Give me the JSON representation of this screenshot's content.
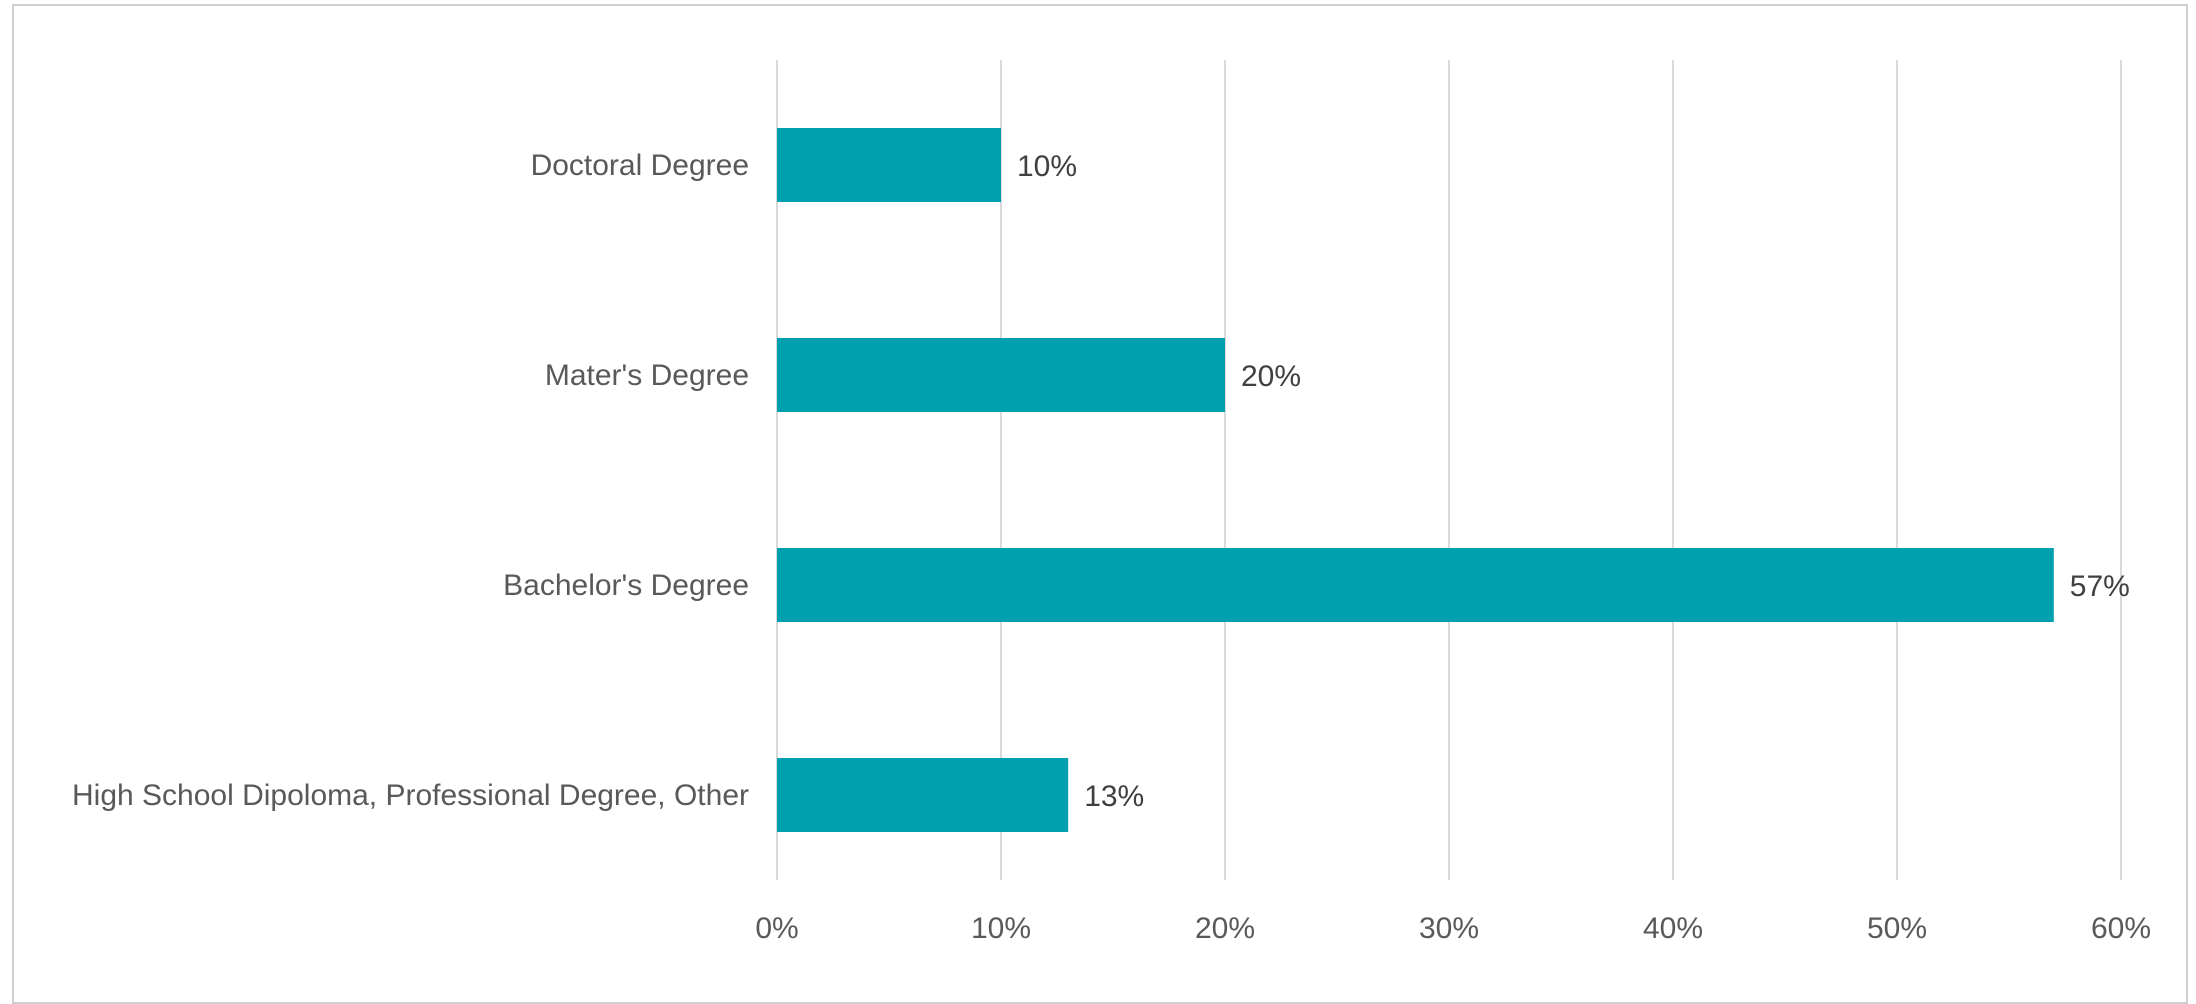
{
  "chart_data": {
    "type": "bar",
    "orientation": "horizontal",
    "categories": [
      "Doctoral Degree",
      "Mater's Degree",
      "Bachelor's Degree",
      "High School Dipoloma, Professional Degree, Other"
    ],
    "values": [
      10,
      20,
      57,
      13
    ],
    "value_labels": [
      "10%",
      "20%",
      "57%",
      "13%"
    ],
    "xlim": [
      0,
      60
    ],
    "xticks": [
      0,
      10,
      20,
      30,
      40,
      50,
      60
    ],
    "xtick_labels": [
      "0%",
      "10%",
      "20%",
      "30%",
      "40%",
      "50%",
      "60%"
    ],
    "title": "",
    "xlabel": "",
    "ylabel": "",
    "grid": "vertical",
    "legend": "none",
    "bar_color": "#00A0AF",
    "grid_color": "#D9D9D9"
  }
}
